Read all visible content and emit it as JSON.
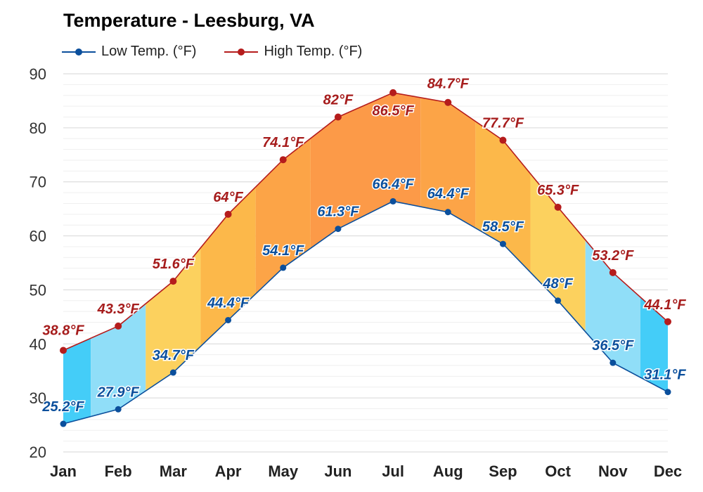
{
  "chart_data": {
    "type": "area",
    "title": "Temperature - Leesburg, VA",
    "categories": [
      "Jan",
      "Feb",
      "Mar",
      "Apr",
      "May",
      "Jun",
      "Jul",
      "Aug",
      "Sep",
      "Oct",
      "Nov",
      "Dec"
    ],
    "series": [
      {
        "name": "Low Temp. (°F)",
        "values": [
          25.2,
          27.9,
          34.7,
          44.4,
          54.1,
          61.3,
          66.4,
          64.4,
          58.5,
          48,
          36.5,
          31.1
        ],
        "color": "#0b4f9c",
        "label_color": "#0b4f9c"
      },
      {
        "name": "High Temp. (°F)",
        "values": [
          38.8,
          43.3,
          51.6,
          64,
          74.1,
          82,
          86.5,
          84.7,
          77.7,
          65.3,
          53.2,
          44.1
        ],
        "color": "#b51c1c",
        "label_color": "#a61c1c"
      }
    ],
    "data_labels": {
      "low": [
        "25.2°F",
        "27.9°F",
        "34.7°F",
        "44.4°F",
        "54.1°F",
        "61.3°F",
        "66.4°F",
        "64.4°F",
        "58.5°F",
        "48°F",
        "36.5°F",
        "31.1°F"
      ],
      "high": [
        "38.8°F",
        "43.3°F",
        "51.6°F",
        "64°F",
        "74.1°F",
        "82°F",
        "86.5°F",
        "84.7°F",
        "77.7°F",
        "65.3°F",
        "53.2°F",
        "44.1°F"
      ]
    },
    "yticks": [
      20,
      30,
      40,
      50,
      60,
      70,
      80,
      90
    ],
    "ylim": [
      20,
      90
    ],
    "grid": true,
    "legend": "top-left",
    "band_colors": [
      "#44cdf8",
      "#90def8",
      "#fcd15e",
      "#fcb84a",
      "#fca447",
      "#fc9a48",
      "#fc9a48",
      "#fca447",
      "#fcb84a",
      "#fcd15e",
      "#90def8",
      "#44cdf8"
    ]
  }
}
